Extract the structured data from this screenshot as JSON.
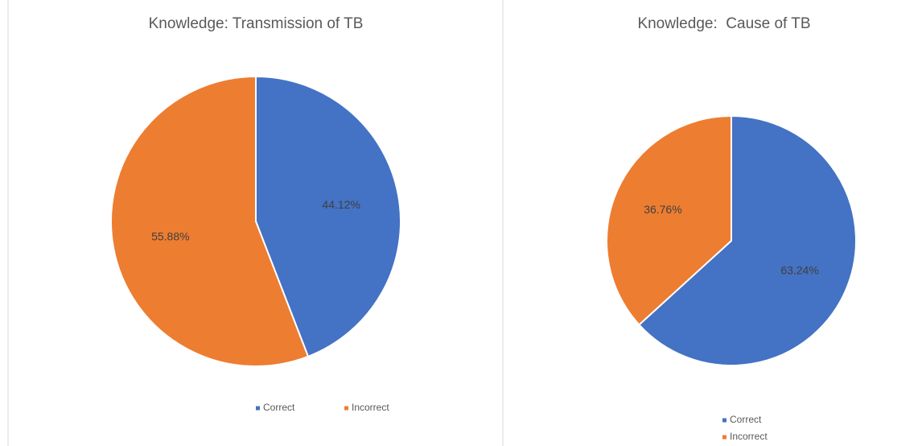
{
  "chart_data": [
    {
      "type": "pie",
      "title": "Knowledge: Transmission of TB",
      "categories": [
        "Correct",
        "Incorrect"
      ],
      "values": [
        44.12,
        55.88
      ],
      "value_labels": [
        "44.12%",
        "55.88%"
      ],
      "colors": [
        "#4472c4",
        "#ed7d31"
      ],
      "legend": "bottom"
    },
    {
      "type": "pie",
      "title": "Knowledge:  Cause of TB",
      "categories": [
        "Correct",
        "Incorrect"
      ],
      "values": [
        63.24,
        36.76
      ],
      "value_labels": [
        "63.24%",
        "36.76%"
      ],
      "colors": [
        "#4472c4",
        "#ed7d31"
      ],
      "legend": "bottom"
    }
  ]
}
